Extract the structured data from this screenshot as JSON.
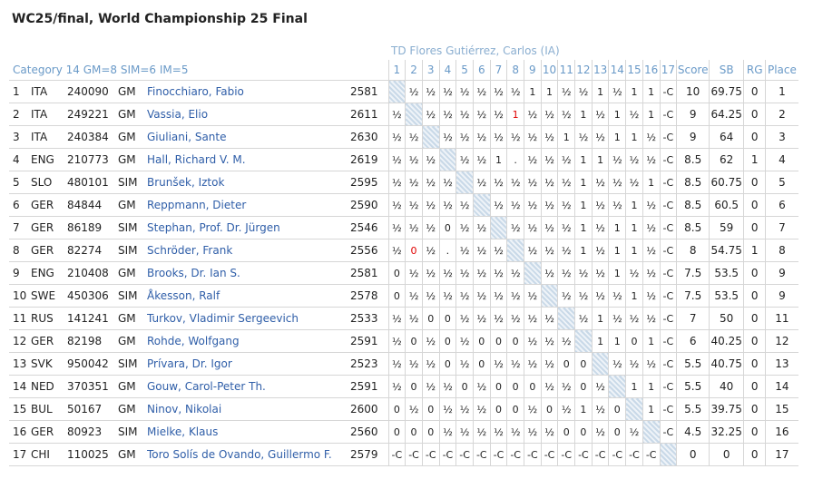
{
  "header": {
    "title": "WC25/final, World Championship 25 Final",
    "td": "TD Flores Gutiérrez, Carlos (IA)",
    "category": "Category 14 GM=8 SIM=6 IM=5"
  },
  "table": {
    "columns": [
      "1",
      "2",
      "3",
      "4",
      "5",
      "6",
      "7",
      "8",
      "9",
      "10",
      "11",
      "12",
      "13",
      "14",
      "15",
      "16",
      "17",
      "Score",
      "SB",
      "RG",
      "Place"
    ],
    "rows": [
      {
        "rank": "1",
        "fed": "ITA",
        "id": "240090",
        "title": "GM",
        "name": "Finocchiaro, Fabio",
        "rating": "2581",
        "results": [
          null,
          "½",
          "½",
          "½",
          "½",
          "½",
          "½",
          "½",
          "1",
          "1",
          "½",
          "½",
          "1",
          "½",
          "1",
          "1",
          "-C"
        ],
        "score": "10",
        "sb": "69.75",
        "rg": "0",
        "place": "1"
      },
      {
        "rank": "2",
        "fed": "ITA",
        "id": "249221",
        "title": "GM",
        "name": "Vassia, Elio",
        "rating": "2611",
        "results": [
          "½",
          null,
          "½",
          "½",
          "½",
          "½",
          "½",
          "1",
          "½",
          "½",
          "½",
          "1",
          "½",
          "1",
          "½",
          "1",
          "-C"
        ],
        "score": "9",
        "sb": "64.25",
        "rg": "0",
        "place": "2"
      },
      {
        "rank": "3",
        "fed": "ITA",
        "id": "240384",
        "title": "GM",
        "name": "Giuliani, Sante",
        "rating": "2630",
        "results": [
          "½",
          "½",
          null,
          "½",
          "½",
          "½",
          "½",
          "½",
          "½",
          "½",
          "1",
          "½",
          "½",
          "1",
          "1",
          "½",
          "-C"
        ],
        "score": "9",
        "sb": "64",
        "rg": "0",
        "place": "3"
      },
      {
        "rank": "4",
        "fed": "ENG",
        "id": "210773",
        "title": "GM",
        "name": "Hall, Richard V. M.",
        "rating": "2619",
        "results": [
          "½",
          "½",
          "½",
          null,
          "½",
          "½",
          "1",
          ".",
          "½",
          "½",
          "½",
          "1",
          "1",
          "½",
          "½",
          "½",
          "-C"
        ],
        "score": "8.5",
        "sb": "62",
        "rg": "1",
        "place": "4"
      },
      {
        "rank": "5",
        "fed": "SLO",
        "id": "480101",
        "title": "SIM",
        "name": "Brunšek, Iztok",
        "rating": "2595",
        "results": [
          "½",
          "½",
          "½",
          "½",
          null,
          "½",
          "½",
          "½",
          "½",
          "½",
          "½",
          "1",
          "½",
          "½",
          "½",
          "1",
          "-C"
        ],
        "score": "8.5",
        "sb": "60.75",
        "rg": "0",
        "place": "5"
      },
      {
        "rank": "6",
        "fed": "GER",
        "id": "84844",
        "title": "GM",
        "name": "Reppmann, Dieter",
        "rating": "2590",
        "results": [
          "½",
          "½",
          "½",
          "½",
          "½",
          null,
          "½",
          "½",
          "½",
          "½",
          "½",
          "1",
          "½",
          "½",
          "1",
          "½",
          "-C"
        ],
        "score": "8.5",
        "sb": "60.5",
        "rg": "0",
        "place": "6"
      },
      {
        "rank": "7",
        "fed": "GER",
        "id": "86189",
        "title": "SIM",
        "name": "Stephan, Prof. Dr. Jürgen",
        "rating": "2546",
        "results": [
          "½",
          "½",
          "½",
          "0",
          "½",
          "½",
          null,
          "½",
          "½",
          "½",
          "½",
          "1",
          "½",
          "1",
          "1",
          "½",
          "-C"
        ],
        "score": "8.5",
        "sb": "59",
        "rg": "0",
        "place": "7"
      },
      {
        "rank": "8",
        "fed": "GER",
        "id": "82274",
        "title": "SIM",
        "name": "Schröder, Frank",
        "rating": "2556",
        "results": [
          "½",
          "0",
          "½",
          ".",
          "½",
          "½",
          "½",
          null,
          "½",
          "½",
          "½",
          "1",
          "½",
          "1",
          "1",
          "½",
          "-C"
        ],
        "score": "8",
        "sb": "54.75",
        "rg": "1",
        "place": "8"
      },
      {
        "rank": "9",
        "fed": "ENG",
        "id": "210408",
        "title": "GM",
        "name": "Brooks, Dr. Ian S.",
        "rating": "2581",
        "results": [
          "0",
          "½",
          "½",
          "½",
          "½",
          "½",
          "½",
          "½",
          null,
          "½",
          "½",
          "½",
          "½",
          "1",
          "½",
          "½",
          "-C"
        ],
        "score": "7.5",
        "sb": "53.5",
        "rg": "0",
        "place": "9"
      },
      {
        "rank": "10",
        "fed": "SWE",
        "id": "450306",
        "title": "SIM",
        "name": "Åkesson, Ralf",
        "rating": "2578",
        "results": [
          "0",
          "½",
          "½",
          "½",
          "½",
          "½",
          "½",
          "½",
          "½",
          null,
          "½",
          "½",
          "½",
          "½",
          "1",
          "½",
          "-C"
        ],
        "score": "7.5",
        "sb": "53.5",
        "rg": "0",
        "place": "9"
      },
      {
        "rank": "11",
        "fed": "RUS",
        "id": "141241",
        "title": "GM",
        "name": "Turkov, Vladimir Sergeevich",
        "rating": "2533",
        "results": [
          "½",
          "½",
          "0",
          "0",
          "½",
          "½",
          "½",
          "½",
          "½",
          "½",
          null,
          "½",
          "1",
          "½",
          "½",
          "½",
          "-C"
        ],
        "score": "7",
        "sb": "50",
        "rg": "0",
        "place": "11"
      },
      {
        "rank": "12",
        "fed": "GER",
        "id": "82198",
        "title": "GM",
        "name": "Rohde, Wolfgang",
        "rating": "2591",
        "results": [
          "½",
          "0",
          "½",
          "0",
          "½",
          "0",
          "0",
          "0",
          "½",
          "½",
          "½",
          null,
          "1",
          "1",
          "0",
          "1",
          "-C"
        ],
        "score": "6",
        "sb": "40.25",
        "rg": "0",
        "place": "12"
      },
      {
        "rank": "13",
        "fed": "SVK",
        "id": "950042",
        "title": "SIM",
        "name": "Prívara, Dr. Igor",
        "rating": "2523",
        "results": [
          "½",
          "½",
          "½",
          "0",
          "½",
          "0",
          "½",
          "½",
          "½",
          "½",
          "0",
          "0",
          null,
          "½",
          "½",
          "½",
          "-C"
        ],
        "score": "5.5",
        "sb": "40.75",
        "rg": "0",
        "place": "13"
      },
      {
        "rank": "14",
        "fed": "NED",
        "id": "370351",
        "title": "GM",
        "name": "Gouw, Carol-Peter Th.",
        "rating": "2591",
        "results": [
          "½",
          "0",
          "½",
          "½",
          "0",
          "½",
          "0",
          "0",
          "0",
          "½",
          "½",
          "0",
          "½",
          null,
          "1",
          "1",
          "-C"
        ],
        "score": "5.5",
        "sb": "40",
        "rg": "0",
        "place": "14"
      },
      {
        "rank": "15",
        "fed": "BUL",
        "id": "50167",
        "title": "GM",
        "name": "Ninov, Nikolai",
        "rating": "2600",
        "results": [
          "0",
          "½",
          "0",
          "½",
          "½",
          "½",
          "0",
          "0",
          "½",
          "0",
          "½",
          "1",
          "½",
          "0",
          null,
          "1",
          "-C"
        ],
        "score": "5.5",
        "sb": "39.75",
        "rg": "0",
        "place": "15"
      },
      {
        "rank": "16",
        "fed": "GER",
        "id": "80923",
        "title": "SIM",
        "name": "Mielke, Klaus",
        "rating": "2560",
        "results": [
          "0",
          "0",
          "0",
          "½",
          "½",
          "½",
          "½",
          "½",
          "½",
          "½",
          "0",
          "0",
          "½",
          "0",
          "½",
          null,
          "-C"
        ],
        "score": "4.5",
        "sb": "32.25",
        "rg": "0",
        "place": "16"
      },
      {
        "rank": "17",
        "fed": "CHI",
        "id": "110025",
        "title": "GM",
        "name": "Toro Solís de Ovando, Guillermo F.",
        "rating": "2579",
        "results": [
          "-C",
          "-C",
          "-C",
          "-C",
          "-C",
          "-C",
          "-C",
          "-C",
          "-C",
          "-C",
          "-C",
          "-C",
          "-C",
          "-C",
          "-C",
          "-C",
          null
        ],
        "score": "0",
        "sb": "0",
        "rg": "0",
        "place": "17"
      }
    ]
  }
}
